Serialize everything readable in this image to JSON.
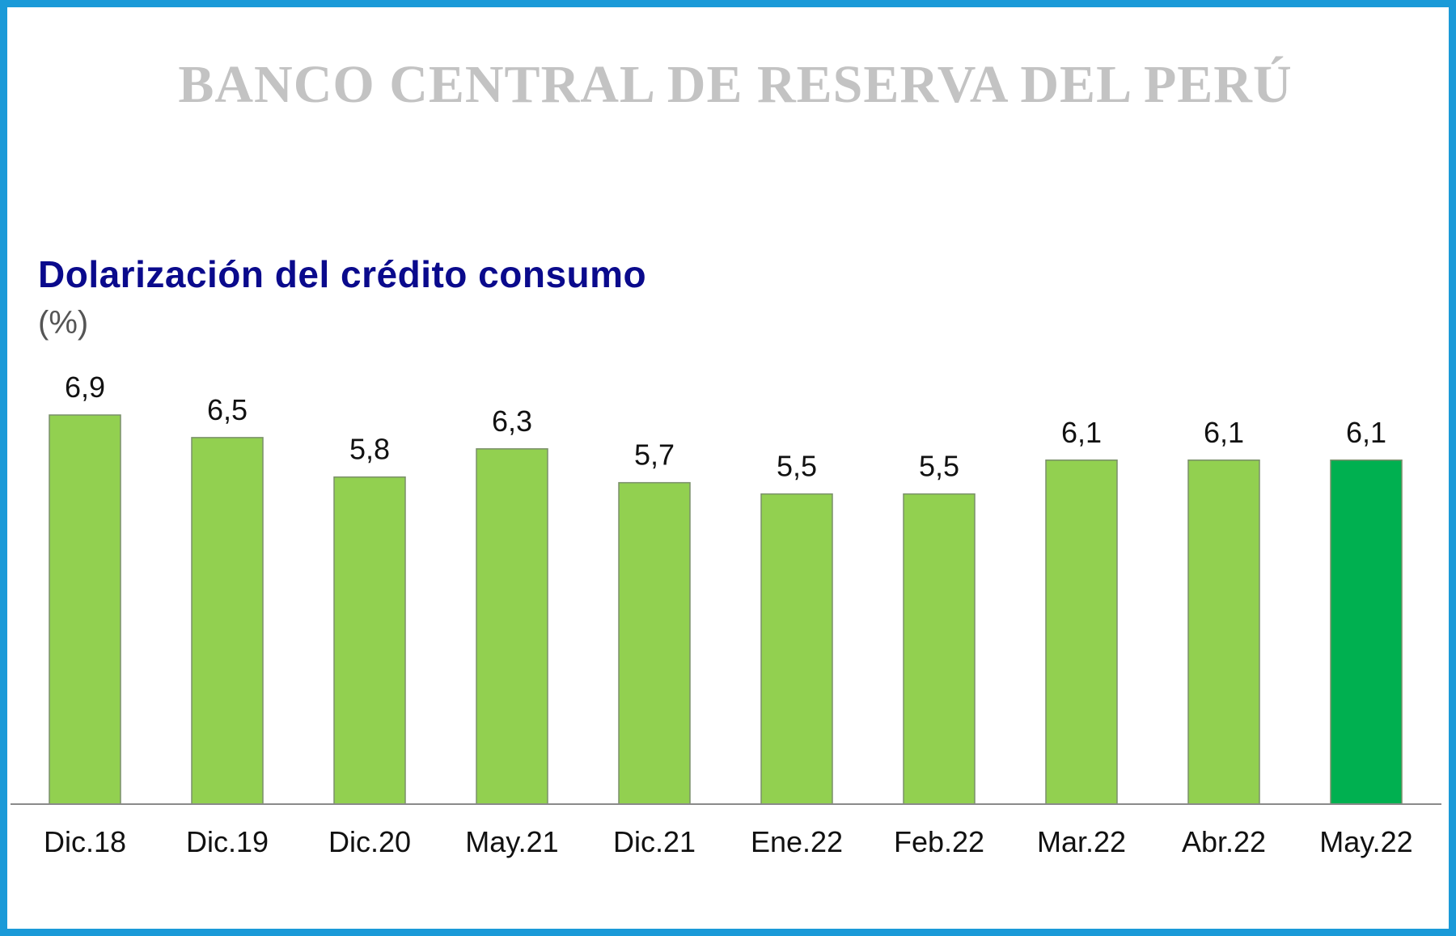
{
  "watermark": "BANCO CENTRAL DE RESERVA DEL PERÚ",
  "colors": {
    "frame": "#1a9ad8",
    "bar": "#92d050",
    "bar_highlight": "#00b050",
    "bar_edge": "#7a8f6a",
    "axis": "#8a8a8a",
    "title": "#0a0a8c",
    "watermark": "#c3c3c3"
  },
  "chart_data": {
    "type": "bar",
    "title": "Dolarización del crédito consumo",
    "ylabel": "(%)",
    "xlabel": "",
    "categories": [
      "Dic.18",
      "Dic.19",
      "Dic.20",
      "May.21",
      "Dic.21",
      "Ene.22",
      "Feb.22",
      "Mar.22",
      "Abr.22",
      "May.22"
    ],
    "values": [
      6.9,
      6.5,
      5.8,
      6.3,
      5.7,
      5.5,
      5.5,
      6.1,
      6.1,
      6.1
    ],
    "value_labels": [
      "6,9",
      "6,5",
      "5,8",
      "6,3",
      "5,7",
      "5,5",
      "5,5",
      "6,1",
      "6,1",
      "6,1"
    ],
    "highlight_index": 9,
    "ylim": [
      0,
      6.9
    ],
    "grid": false,
    "legend": "none"
  }
}
